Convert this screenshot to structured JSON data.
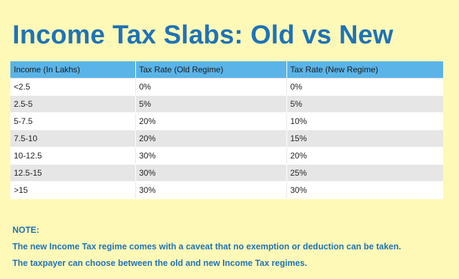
{
  "title": "Income Tax Slabs: Old vs New",
  "table": {
    "headers": [
      "Income (In Lakhs)",
      "Tax Rate (Old Regime)",
      "Tax Rate (New Regime)"
    ],
    "rows": [
      [
        "<2.5",
        "0%",
        "0%"
      ],
      [
        "2.5-5",
        "5%",
        "5%"
      ],
      [
        "5-7.5",
        "20%",
        "10%"
      ],
      [
        "7.5-10",
        "20%",
        "15%"
      ],
      [
        "10-12.5",
        "30%",
        "20%"
      ],
      [
        "12.5-15",
        "30%",
        "25%"
      ],
      [
        ">15",
        "30%",
        "30%"
      ]
    ]
  },
  "note": {
    "heading": "NOTE:",
    "lines": [
      "The new Income Tax regime comes with a caveat that no exemption or deduction can be taken.",
      "The taxpayer can choose between the old and new Income Tax regimes."
    ]
  },
  "colors": {
    "background": "#fff9b8",
    "title": "#1e73b7",
    "header_bg": "#5ab4e8",
    "stripe": "#e6e6e6"
  }
}
